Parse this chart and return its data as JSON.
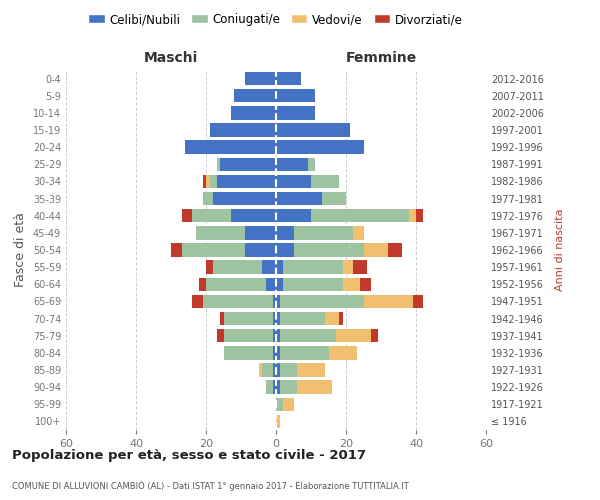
{
  "age_groups": [
    "100+",
    "95-99",
    "90-94",
    "85-89",
    "80-84",
    "75-79",
    "70-74",
    "65-69",
    "60-64",
    "55-59",
    "50-54",
    "45-49",
    "40-44",
    "35-39",
    "30-34",
    "25-29",
    "20-24",
    "15-19",
    "10-14",
    "5-9",
    "0-4"
  ],
  "birth_years": [
    "≤ 1916",
    "1917-1921",
    "1922-1926",
    "1927-1931",
    "1932-1936",
    "1937-1941",
    "1942-1946",
    "1947-1951",
    "1952-1956",
    "1957-1961",
    "1962-1966",
    "1967-1971",
    "1972-1976",
    "1977-1981",
    "1982-1986",
    "1987-1991",
    "1992-1996",
    "1997-2001",
    "2002-2006",
    "2007-2011",
    "2012-2016"
  ],
  "male": {
    "celibi": [
      0,
      0,
      1,
      1,
      1,
      1,
      1,
      1,
      3,
      4,
      9,
      9,
      13,
      18,
      17,
      16,
      26,
      19,
      13,
      12,
      9
    ],
    "coniugati": [
      0,
      0,
      2,
      3,
      14,
      14,
      14,
      20,
      17,
      14,
      18,
      14,
      11,
      3,
      2,
      1,
      0,
      0,
      0,
      0,
      0
    ],
    "vedovi": [
      0,
      0,
      0,
      1,
      0,
      0,
      0,
      0,
      0,
      0,
      0,
      0,
      0,
      0,
      1,
      0,
      0,
      0,
      0,
      0,
      0
    ],
    "divorziati": [
      0,
      0,
      0,
      0,
      0,
      2,
      1,
      3,
      2,
      2,
      3,
      0,
      3,
      0,
      1,
      0,
      0,
      0,
      0,
      0,
      0
    ]
  },
  "female": {
    "nubili": [
      0,
      0,
      1,
      1,
      1,
      1,
      1,
      1,
      2,
      2,
      5,
      5,
      10,
      13,
      10,
      9,
      25,
      21,
      11,
      11,
      7
    ],
    "coniugate": [
      0,
      2,
      5,
      5,
      14,
      16,
      13,
      24,
      17,
      17,
      20,
      17,
      28,
      7,
      8,
      2,
      0,
      0,
      0,
      0,
      0
    ],
    "vedove": [
      1,
      3,
      10,
      8,
      8,
      10,
      4,
      14,
      5,
      3,
      7,
      3,
      2,
      0,
      0,
      0,
      0,
      0,
      0,
      0,
      0
    ],
    "divorziate": [
      0,
      0,
      0,
      0,
      0,
      2,
      1,
      3,
      3,
      4,
      4,
      0,
      2,
      0,
      0,
      0,
      0,
      0,
      0,
      0,
      0
    ]
  },
  "colors": {
    "celibi": "#4472C4",
    "coniugati": "#9DC3A0",
    "vedovi": "#F0C070",
    "divorziati": "#C0392B"
  },
  "title": "Popolazione per età, sesso e stato civile - 2017",
  "subtitle": "COMUNE DI ALLUVIONI CAMBIÒ (AL) - Dati ISTAT 1° gennaio 2017 - Elaborazione TUTTITALIA.IT",
  "ylabel_left": "Fasce di età",
  "ylabel_right": "Anni di nascita",
  "xlabel_left": "Maschi",
  "xlabel_right": "Femmine",
  "xlim": 60,
  "legend_labels": [
    "Celibi/Nubili",
    "Coniugati/e",
    "Vedovi/e",
    "Divorziati/e"
  ],
  "background_color": "#ffffff",
  "grid_color": "#cccccc"
}
